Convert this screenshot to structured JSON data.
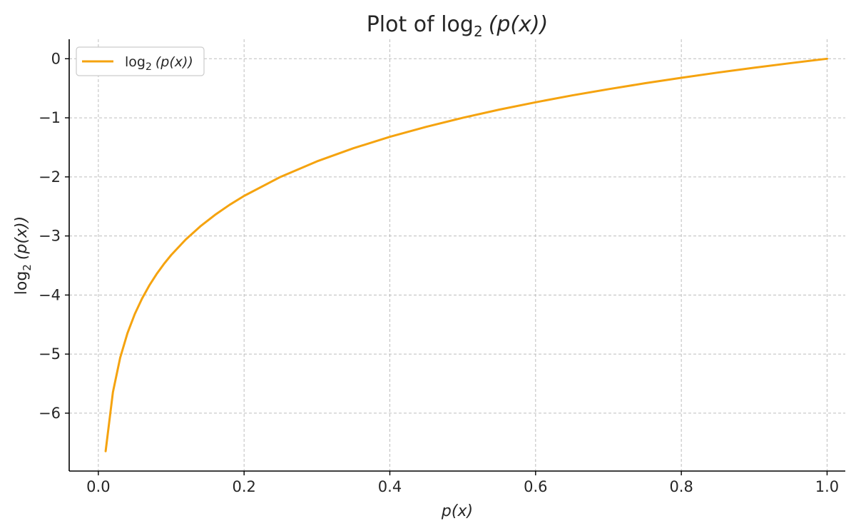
{
  "chart_data": {
    "type": "line",
    "title": {
      "prefix": "Plot of ",
      "func": "log",
      "base": "2",
      "arg": "(p(x))"
    },
    "xlabel": "p(x)",
    "ylabel": {
      "func": "log",
      "base": "2",
      "arg": "(p(x))"
    },
    "xlim": [
      -0.04,
      1.025
    ],
    "ylim": [
      -6.98,
      0.33
    ],
    "x_ticks": [
      0.0,
      0.2,
      0.4,
      0.6,
      0.8,
      1.0
    ],
    "x_tick_labels": [
      "0.0",
      "0.2",
      "0.4",
      "0.6",
      "0.8",
      "1.0"
    ],
    "y_ticks": [
      0,
      -1,
      -2,
      -3,
      -4,
      -5,
      -6
    ],
    "y_tick_labels": [
      "0",
      "−1",
      "−2",
      "−3",
      "−4",
      "−5",
      "−6"
    ],
    "grid": true,
    "legend": {
      "position": "top-left",
      "entries": [
        {
          "func": "log",
          "base": "2",
          "arg": "(p(x))"
        }
      ]
    },
    "series": [
      {
        "color": "#f5a30f",
        "x": [
          0.01,
          0.02,
          0.03,
          0.04,
          0.05,
          0.06,
          0.07,
          0.08,
          0.09,
          0.1,
          0.12,
          0.14,
          0.16,
          0.18,
          0.2,
          0.25,
          0.3,
          0.35,
          0.4,
          0.45,
          0.5,
          0.55,
          0.6,
          0.65,
          0.7,
          0.75,
          0.8,
          0.85,
          0.9,
          0.95,
          1.0
        ],
        "y": [
          -6.644,
          -5.644,
          -5.059,
          -4.644,
          -4.322,
          -4.059,
          -3.837,
          -3.644,
          -3.474,
          -3.322,
          -3.059,
          -2.837,
          -2.644,
          -2.474,
          -2.322,
          -2.0,
          -1.737,
          -1.515,
          -1.322,
          -1.152,
          -1.0,
          -0.862,
          -0.737,
          -0.621,
          -0.515,
          -0.415,
          -0.322,
          -0.234,
          -0.152,
          -0.074,
          0.0
        ]
      }
    ]
  }
}
